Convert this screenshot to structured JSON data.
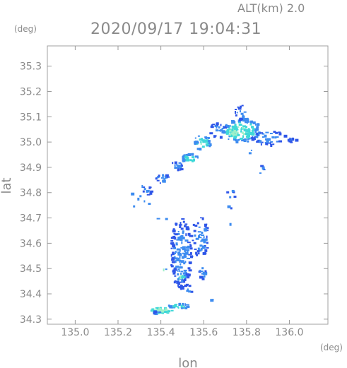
{
  "header": {
    "altitude_label": "ALT(km) 2.0",
    "datetime": "2020/09/17 19:04:31",
    "y_unit": "(deg)",
    "x_unit": "(deg)"
  },
  "colors": {
    "frame": "#999999",
    "text": "#8a8a8a",
    "echo_low": "#2f56e8",
    "echo_mid": "#3d8cf0",
    "echo_high": "#3fd8d8",
    "echo_peak": "#a0f0c8"
  },
  "chart_data": {
    "type": "scatter",
    "title": "2020/09/17 19:04:31",
    "subtitle": "ALT(km) 2.0",
    "xlabel": "lon",
    "ylabel": "lat",
    "x_unit": "(deg)",
    "y_unit": "(deg)",
    "xlim": [
      134.87,
      136.18
    ],
    "ylim": [
      34.28,
      35.38
    ],
    "xticks": [
      135.0,
      135.2,
      135.4,
      135.6,
      135.8,
      136.0
    ],
    "xtick_labels": [
      "135.0",
      "135.2",
      "135.4",
      "135.6",
      "135.8",
      "136.0"
    ],
    "yticks": [
      34.3,
      34.4,
      34.5,
      34.6,
      34.7,
      34.8,
      34.9,
      35.0,
      35.1,
      35.2,
      35.3
    ],
    "ytick_labels": [
      "34.3",
      "34.4",
      "34.5",
      "34.6",
      "34.7",
      "34.8",
      "34.9",
      "35.0",
      "35.1",
      "35.2",
      "35.3"
    ],
    "grid": false,
    "echo_clusters": [
      {
        "lon": 135.77,
        "lat": 35.05,
        "rx": 0.09,
        "ry": 0.05,
        "n": 130,
        "level": 2
      },
      {
        "lon": 135.73,
        "lat": 35.04,
        "rx": 0.03,
        "ry": 0.02,
        "n": 30,
        "level": 3
      },
      {
        "lon": 135.77,
        "lat": 35.12,
        "rx": 0.03,
        "ry": 0.03,
        "n": 18,
        "level": 1
      },
      {
        "lon": 135.66,
        "lat": 35.05,
        "rx": 0.04,
        "ry": 0.03,
        "n": 25,
        "level": 1
      },
      {
        "lon": 135.9,
        "lat": 35.02,
        "rx": 0.08,
        "ry": 0.03,
        "n": 45,
        "level": 1
      },
      {
        "lon": 136.01,
        "lat": 35.01,
        "rx": 0.02,
        "ry": 0.01,
        "n": 10,
        "level": 1
      },
      {
        "lon": 135.59,
        "lat": 35.0,
        "rx": 0.04,
        "ry": 0.03,
        "n": 35,
        "level": 2
      },
      {
        "lon": 135.53,
        "lat": 34.94,
        "rx": 0.04,
        "ry": 0.02,
        "n": 30,
        "level": 2
      },
      {
        "lon": 135.47,
        "lat": 34.91,
        "rx": 0.03,
        "ry": 0.02,
        "n": 20,
        "level": 1
      },
      {
        "lon": 135.4,
        "lat": 34.86,
        "rx": 0.03,
        "ry": 0.02,
        "n": 18,
        "level": 1
      },
      {
        "lon": 135.33,
        "lat": 34.81,
        "rx": 0.02,
        "ry": 0.02,
        "n": 10,
        "level": 1
      },
      {
        "lon": 135.87,
        "lat": 34.9,
        "rx": 0.01,
        "ry": 0.02,
        "n": 5,
        "level": 1
      },
      {
        "lon": 135.72,
        "lat": 34.79,
        "rx": 0.02,
        "ry": 0.06,
        "n": 7,
        "level": 1
      },
      {
        "lon": 135.49,
        "lat": 34.56,
        "rx": 0.05,
        "ry": 0.14,
        "n": 170,
        "level": 1
      },
      {
        "lon": 135.58,
        "lat": 34.63,
        "rx": 0.04,
        "ry": 0.08,
        "n": 55,
        "level": 1
      },
      {
        "lon": 135.59,
        "lat": 34.49,
        "rx": 0.02,
        "ry": 0.03,
        "n": 14,
        "level": 1
      },
      {
        "lon": 135.49,
        "lat": 34.47,
        "rx": 0.02,
        "ry": 0.02,
        "n": 12,
        "level": 2
      },
      {
        "lon": 135.52,
        "lat": 34.42,
        "rx": 0.02,
        "ry": 0.02,
        "n": 8,
        "level": 1
      },
      {
        "lon": 135.4,
        "lat": 34.34,
        "rx": 0.05,
        "ry": 0.01,
        "n": 45,
        "level": 3
      },
      {
        "lon": 135.48,
        "lat": 34.355,
        "rx": 0.05,
        "ry": 0.01,
        "n": 30,
        "level": 2
      },
      {
        "lon": 135.37,
        "lat": 34.33,
        "rx": 0.02,
        "ry": 0.005,
        "n": 12,
        "level": 1
      }
    ],
    "echo_points": [
      {
        "lon": 135.41,
        "lat": 34.5,
        "level": 3
      },
      {
        "lon": 135.42,
        "lat": 34.5,
        "level": 1
      },
      {
        "lon": 135.31,
        "lat": 34.83,
        "level": 1
      },
      {
        "lon": 135.3,
        "lat": 34.79,
        "level": 1
      },
      {
        "lon": 135.29,
        "lat": 34.78,
        "level": 1
      },
      {
        "lon": 135.34,
        "lat": 34.76,
        "level": 1
      },
      {
        "lon": 135.27,
        "lat": 34.75,
        "level": 1
      },
      {
        "lon": 135.42,
        "lat": 34.7,
        "level": 1
      },
      {
        "lon": 135.38,
        "lat": 34.7,
        "level": 1
      },
      {
        "lon": 135.71,
        "lat": 34.75,
        "level": 1
      },
      {
        "lon": 135.72,
        "lat": 34.68,
        "level": 1
      },
      {
        "lon": 135.86,
        "lat": 34.88,
        "level": 1
      },
      {
        "lon": 135.81,
        "lat": 34.96,
        "level": 1
      },
      {
        "lon": 135.82,
        "lat": 34.97,
        "level": 1
      },
      {
        "lon": 135.63,
        "lat": 34.38,
        "level": 1
      },
      {
        "lon": 135.64,
        "lat": 34.38,
        "level": 1
      },
      {
        "lon": 135.26,
        "lat": 34.8,
        "level": 1
      },
      {
        "lon": 135.32,
        "lat": 34.77,
        "level": 1
      }
    ]
  }
}
